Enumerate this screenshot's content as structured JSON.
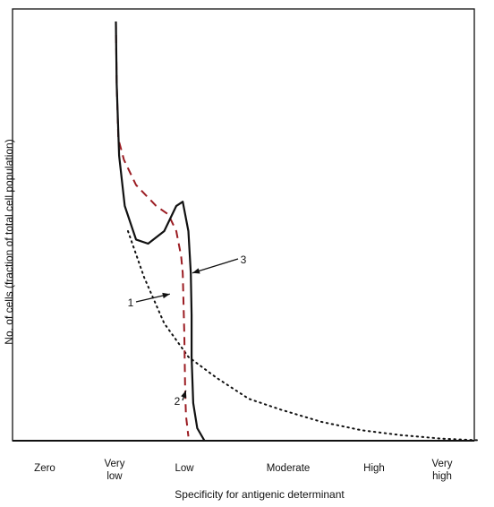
{
  "chart_data": {
    "type": "line",
    "title": "",
    "xlabel": "Specificity for antigenic determinant",
    "ylabel": "No. of cells (fraction of total cell population)",
    "x_categories": [
      "Zero",
      "Very low",
      "Low",
      "Moderate",
      "High",
      "Very high"
    ],
    "x_range": [
      0,
      5.5
    ],
    "y_range": [
      0,
      1
    ],
    "grid": false,
    "legend": "none",
    "series": [
      {
        "label": "1",
        "style": "dotted",
        "color": "#111111",
        "points": [
          [
            1.1,
            0.5
          ],
          [
            1.3,
            0.39
          ],
          [
            1.55,
            0.28
          ],
          [
            1.85,
            0.2
          ],
          [
            2.2,
            0.15
          ],
          [
            2.6,
            0.1
          ],
          [
            3.0,
            0.074
          ],
          [
            3.5,
            0.045
          ],
          [
            4.0,
            0.025
          ],
          [
            4.5,
            0.013
          ],
          [
            5.0,
            0.005
          ],
          [
            5.45,
            0.001
          ]
        ]
      },
      {
        "label": "2",
        "style": "dashed",
        "color": "#9b1c22",
        "points": [
          [
            0.95,
            1.0
          ],
          [
            0.96,
            0.85
          ],
          [
            0.98,
            0.72
          ],
          [
            1.05,
            0.67
          ],
          [
            1.2,
            0.61
          ],
          [
            1.45,
            0.56
          ],
          [
            1.6,
            0.54
          ],
          [
            1.7,
            0.5
          ],
          [
            1.76,
            0.44
          ],
          [
            1.78,
            0.4
          ],
          [
            1.8,
            0.25
          ],
          [
            1.81,
            0.12
          ],
          [
            1.82,
            0.06
          ],
          [
            1.85,
            0.01
          ]
        ]
      },
      {
        "label": "3",
        "style": "solid",
        "color": "#111111",
        "points": [
          [
            0.95,
            1.0
          ],
          [
            0.96,
            0.85
          ],
          [
            0.99,
            0.68
          ],
          [
            1.06,
            0.56
          ],
          [
            1.2,
            0.48
          ],
          [
            1.35,
            0.47
          ],
          [
            1.55,
            0.5
          ],
          [
            1.7,
            0.56
          ],
          [
            1.78,
            0.57
          ],
          [
            1.85,
            0.5
          ],
          [
            1.88,
            0.4
          ],
          [
            1.89,
            0.3
          ],
          [
            1.89,
            0.2
          ],
          [
            1.91,
            0.09
          ],
          [
            1.96,
            0.03
          ],
          [
            2.05,
            0.0
          ]
        ]
      }
    ],
    "annotations": [
      {
        "text": "1",
        "x": 1.1,
        "y": 0.31
      },
      {
        "text": "2",
        "x": 1.6,
        "y": 0.08
      },
      {
        "text": "3",
        "x": 2.2,
        "y": 0.42
      }
    ]
  }
}
